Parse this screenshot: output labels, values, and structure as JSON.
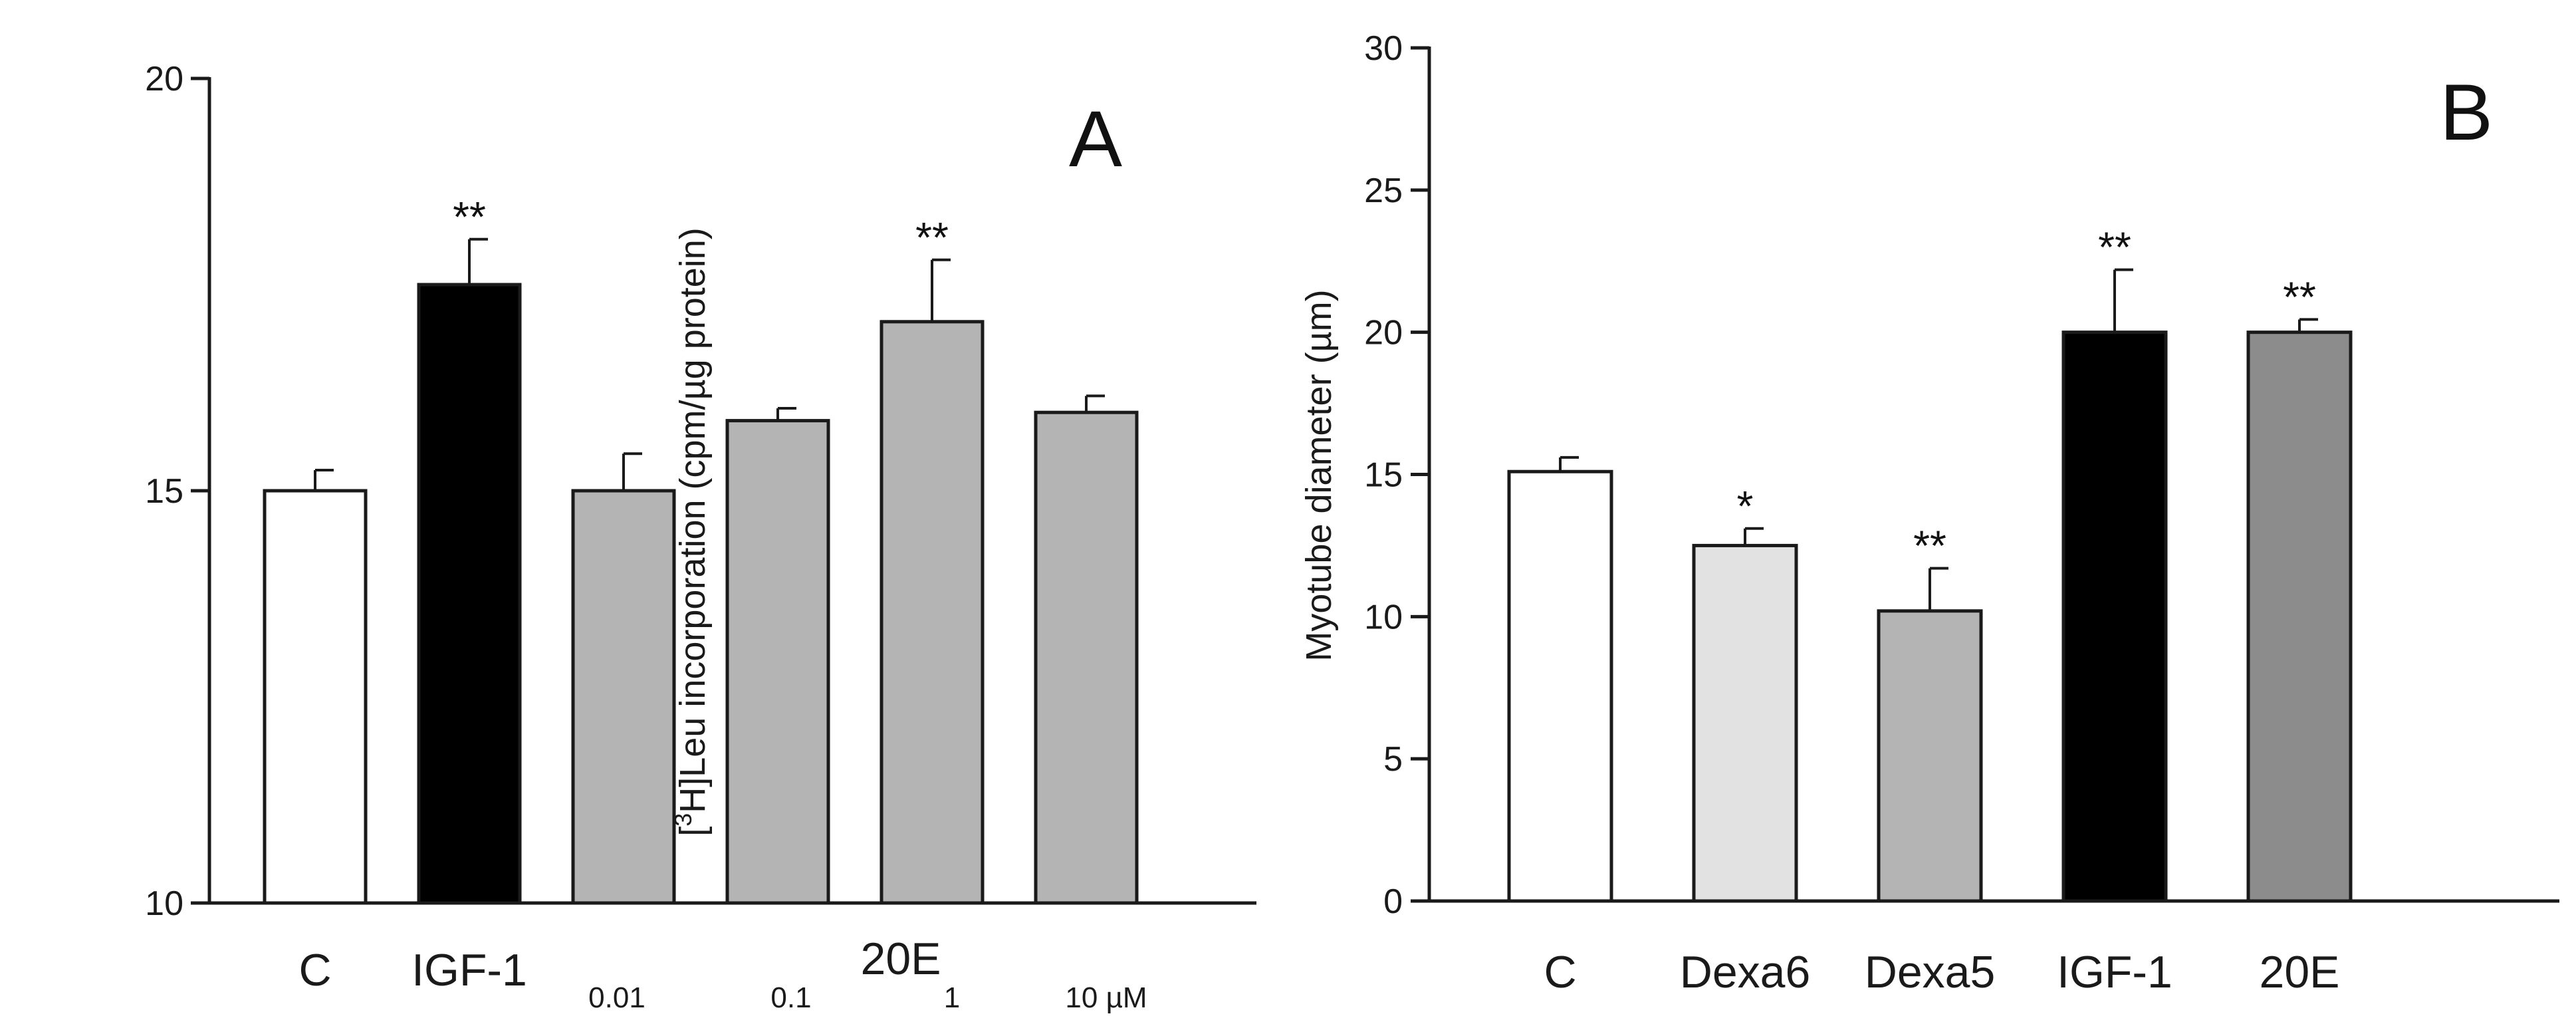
{
  "chart_data": [
    {
      "type": "bar",
      "panel": "A",
      "ylabel_parts": {
        "pre": "[",
        "sup": "3",
        "post": "H]Leu incorporation (cpm/µg protein)"
      },
      "ylim": [
        10,
        20
      ],
      "yticks": [
        10,
        15,
        20
      ],
      "categories": [
        "C",
        "IGF-1",
        "0.01",
        "0.1",
        "1",
        "10 µM"
      ],
      "group_label": "20E",
      "values": [
        15.0,
        17.5,
        15.0,
        15.85,
        17.05,
        15.95
      ],
      "errors": [
        0.25,
        0.55,
        0.45,
        0.15,
        0.75,
        0.2
      ],
      "significance": [
        "",
        "**",
        "",
        "",
        "**",
        ""
      ],
      "colors": [
        "#ffffff",
        "#000000",
        "#b4b4b4",
        "#b4b4b4",
        "#b4b4b4",
        "#b4b4b4"
      ]
    },
    {
      "type": "bar",
      "panel": "B",
      "ylabel": "Myotube diameter (µm)",
      "ylim": [
        0,
        30
      ],
      "yticks": [
        0,
        5,
        10,
        15,
        20,
        25,
        30
      ],
      "categories": [
        "C",
        "Dexa6",
        "Dexa5",
        "IGF-1",
        "20E"
      ],
      "values": [
        15.1,
        12.5,
        10.2,
        20.0,
        20.0
      ],
      "errors": [
        0.5,
        0.6,
        1.5,
        2.2,
        0.45
      ],
      "significance": [
        "",
        "*",
        "**",
        "**",
        "**"
      ],
      "colors": [
        "#ffffff",
        "#e2e2e2",
        "#b4b4b4",
        "#000000",
        "#8c8c8c"
      ]
    }
  ]
}
